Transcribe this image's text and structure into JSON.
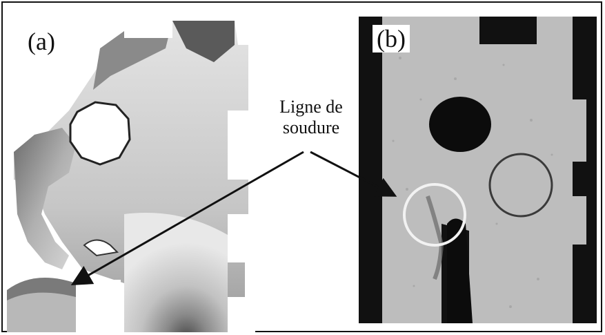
{
  "figure": {
    "panel_a_label": "(a)",
    "panel_b_label": "(b)",
    "annotation_line1": "Ligne de",
    "annotation_line2": "soudure"
  },
  "colors": {
    "frame": "#111111",
    "panel_b_background": "#111111",
    "panel_b_part": "#bdbdbd",
    "weld_circle_highlight": "#f2f2f2",
    "weld_circle_dark": "#3a3a3a"
  }
}
